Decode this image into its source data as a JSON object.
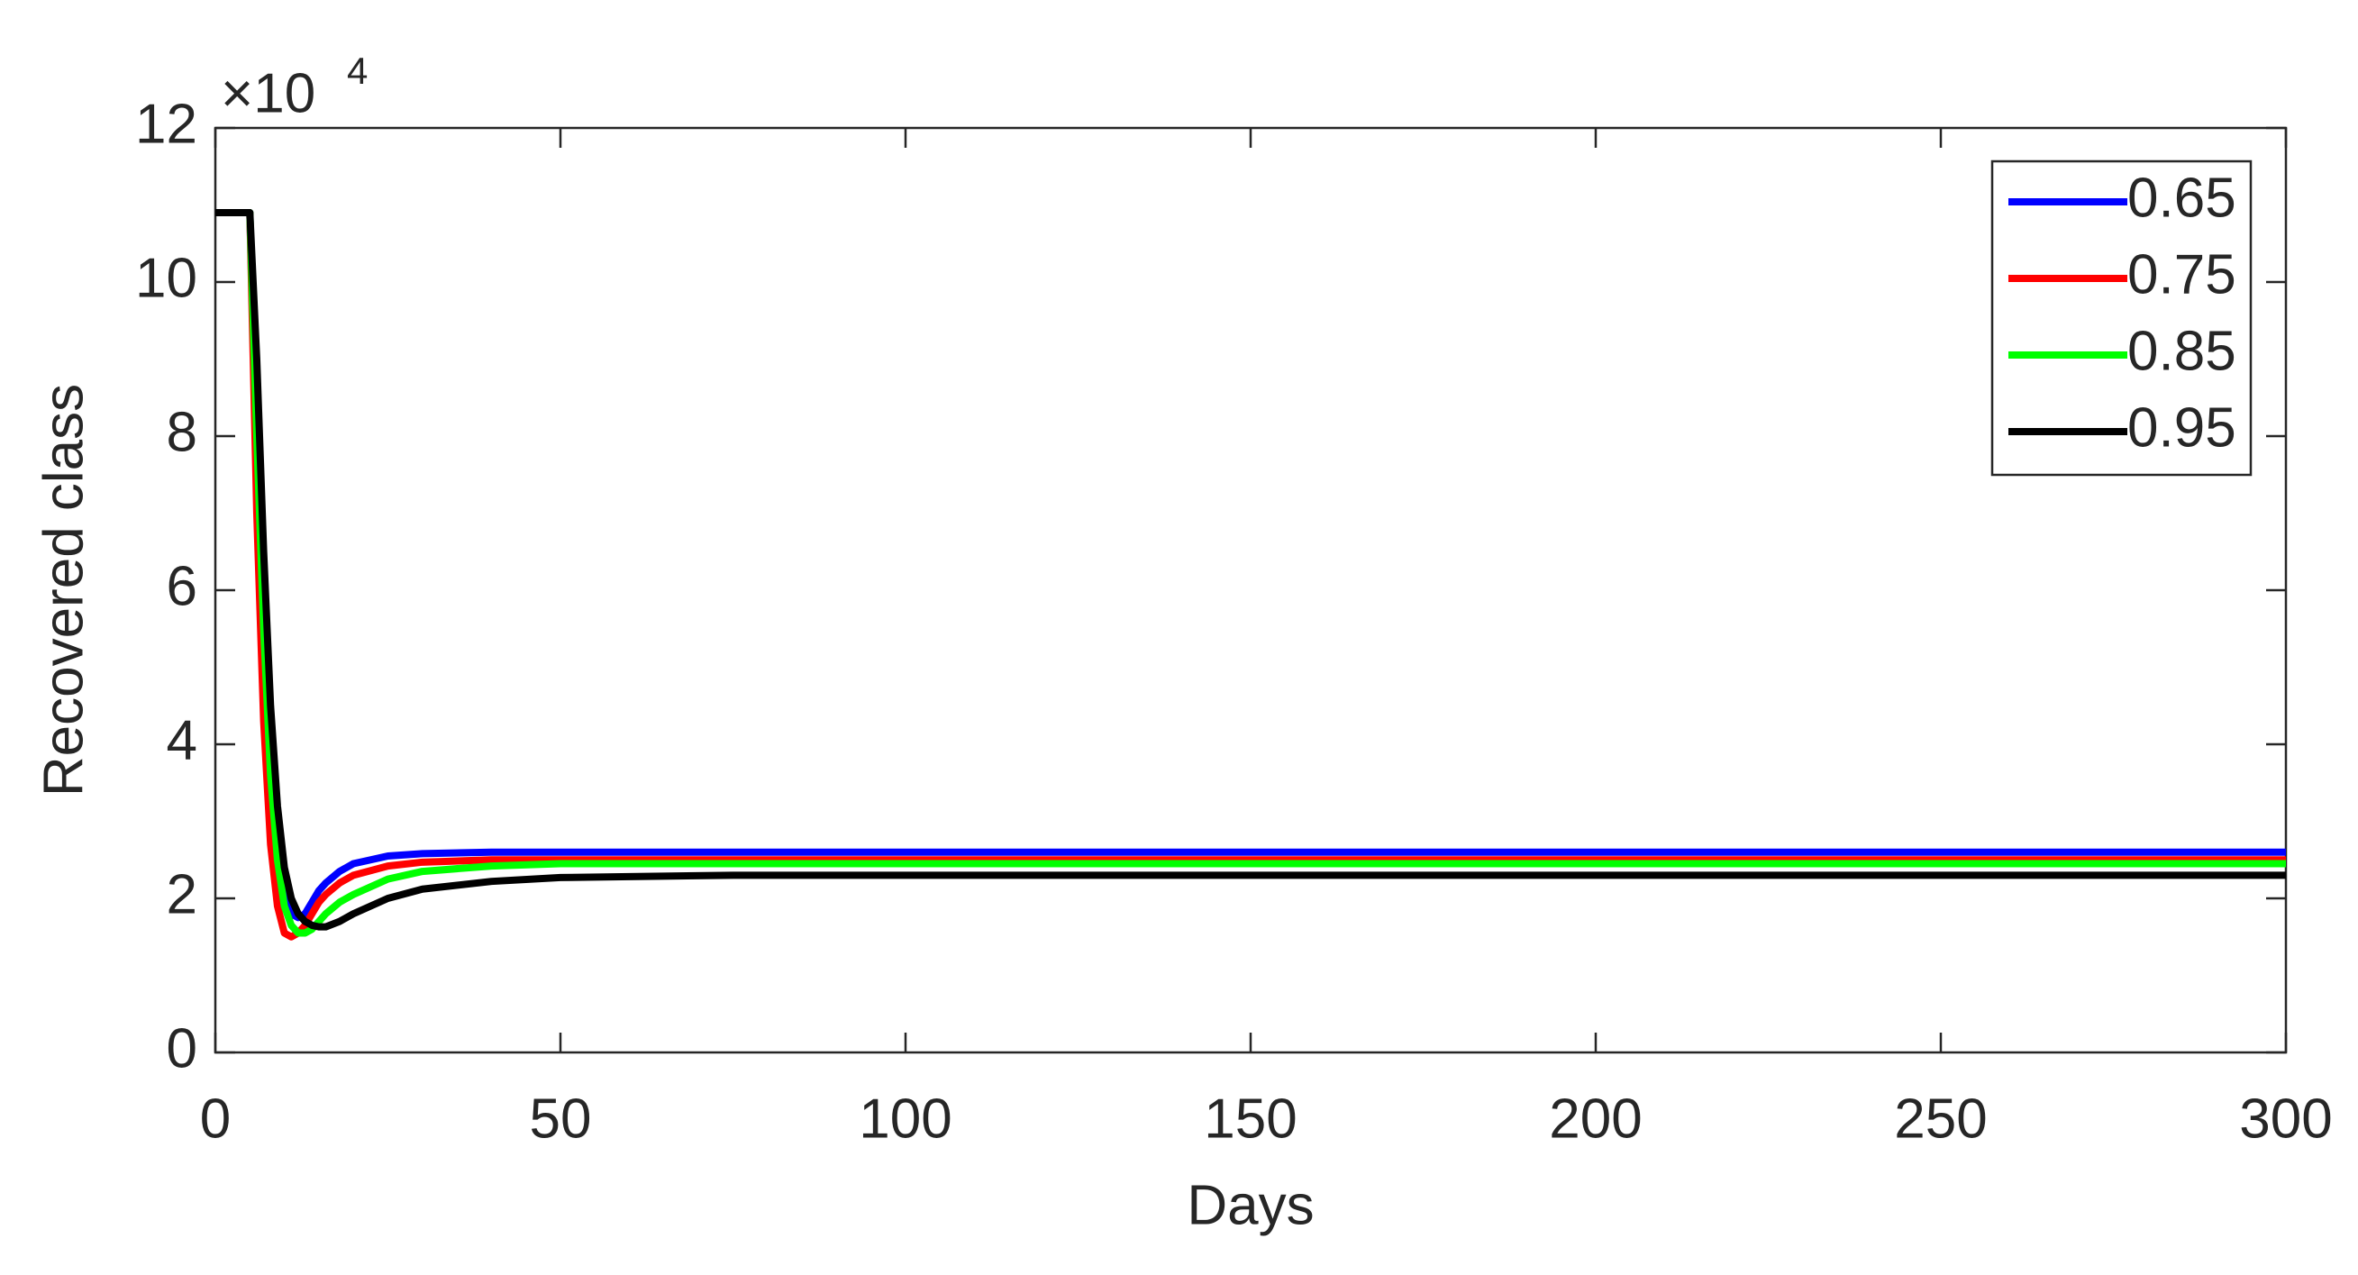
{
  "chart_data": {
    "type": "line",
    "xlabel": "Days",
    "ylabel": "Recovered class",
    "y_multiplier": "×10",
    "y_multiplier_exponent": "4",
    "x": [
      0,
      5,
      6,
      7,
      8,
      9,
      10,
      11,
      12,
      13,
      14,
      15,
      16,
      18,
      20,
      25,
      30,
      40,
      50,
      75,
      100,
      150,
      200,
      250,
      300
    ],
    "series": [
      {
        "name": "0.65",
        "color": "#0000ff",
        "values": [
          10.9,
          10.9,
          7.5,
          4.8,
          3.2,
          2.4,
          2.0,
          1.8,
          1.75,
          1.8,
          1.95,
          2.1,
          2.2,
          2.35,
          2.45,
          2.55,
          2.58,
          2.6,
          2.6,
          2.6,
          2.6,
          2.6,
          2.6,
          2.6,
          2.6
        ]
      },
      {
        "name": "0.75",
        "color": "#ff0000",
        "values": [
          10.9,
          10.9,
          7.0,
          4.3,
          2.7,
          1.9,
          1.55,
          1.5,
          1.55,
          1.65,
          1.8,
          1.95,
          2.05,
          2.2,
          2.3,
          2.42,
          2.47,
          2.5,
          2.5,
          2.5,
          2.5,
          2.5,
          2.5,
          2.5,
          2.5
        ]
      },
      {
        "name": "0.85",
        "color": "#00ff00",
        "values": [
          10.9,
          10.9,
          8.0,
          5.5,
          3.6,
          2.5,
          1.9,
          1.65,
          1.55,
          1.55,
          1.6,
          1.7,
          1.8,
          1.95,
          2.05,
          2.25,
          2.35,
          2.42,
          2.45,
          2.45,
          2.45,
          2.45,
          2.45,
          2.45,
          2.45
        ]
      },
      {
        "name": "0.95",
        "color": "#000000",
        "values": [
          10.9,
          10.9,
          9.0,
          6.5,
          4.5,
          3.2,
          2.4,
          2.0,
          1.8,
          1.7,
          1.65,
          1.63,
          1.63,
          1.7,
          1.8,
          2.0,
          2.12,
          2.22,
          2.27,
          2.3,
          2.3,
          2.3,
          2.3,
          2.3,
          2.3
        ]
      }
    ],
    "xlim": [
      0,
      300
    ],
    "xticks": [
      0,
      50,
      100,
      150,
      200,
      250,
      300
    ],
    "ylim": [
      0,
      12
    ],
    "yticks": [
      0,
      2,
      4,
      6,
      8,
      10,
      12
    ],
    "legend": "upper right"
  }
}
